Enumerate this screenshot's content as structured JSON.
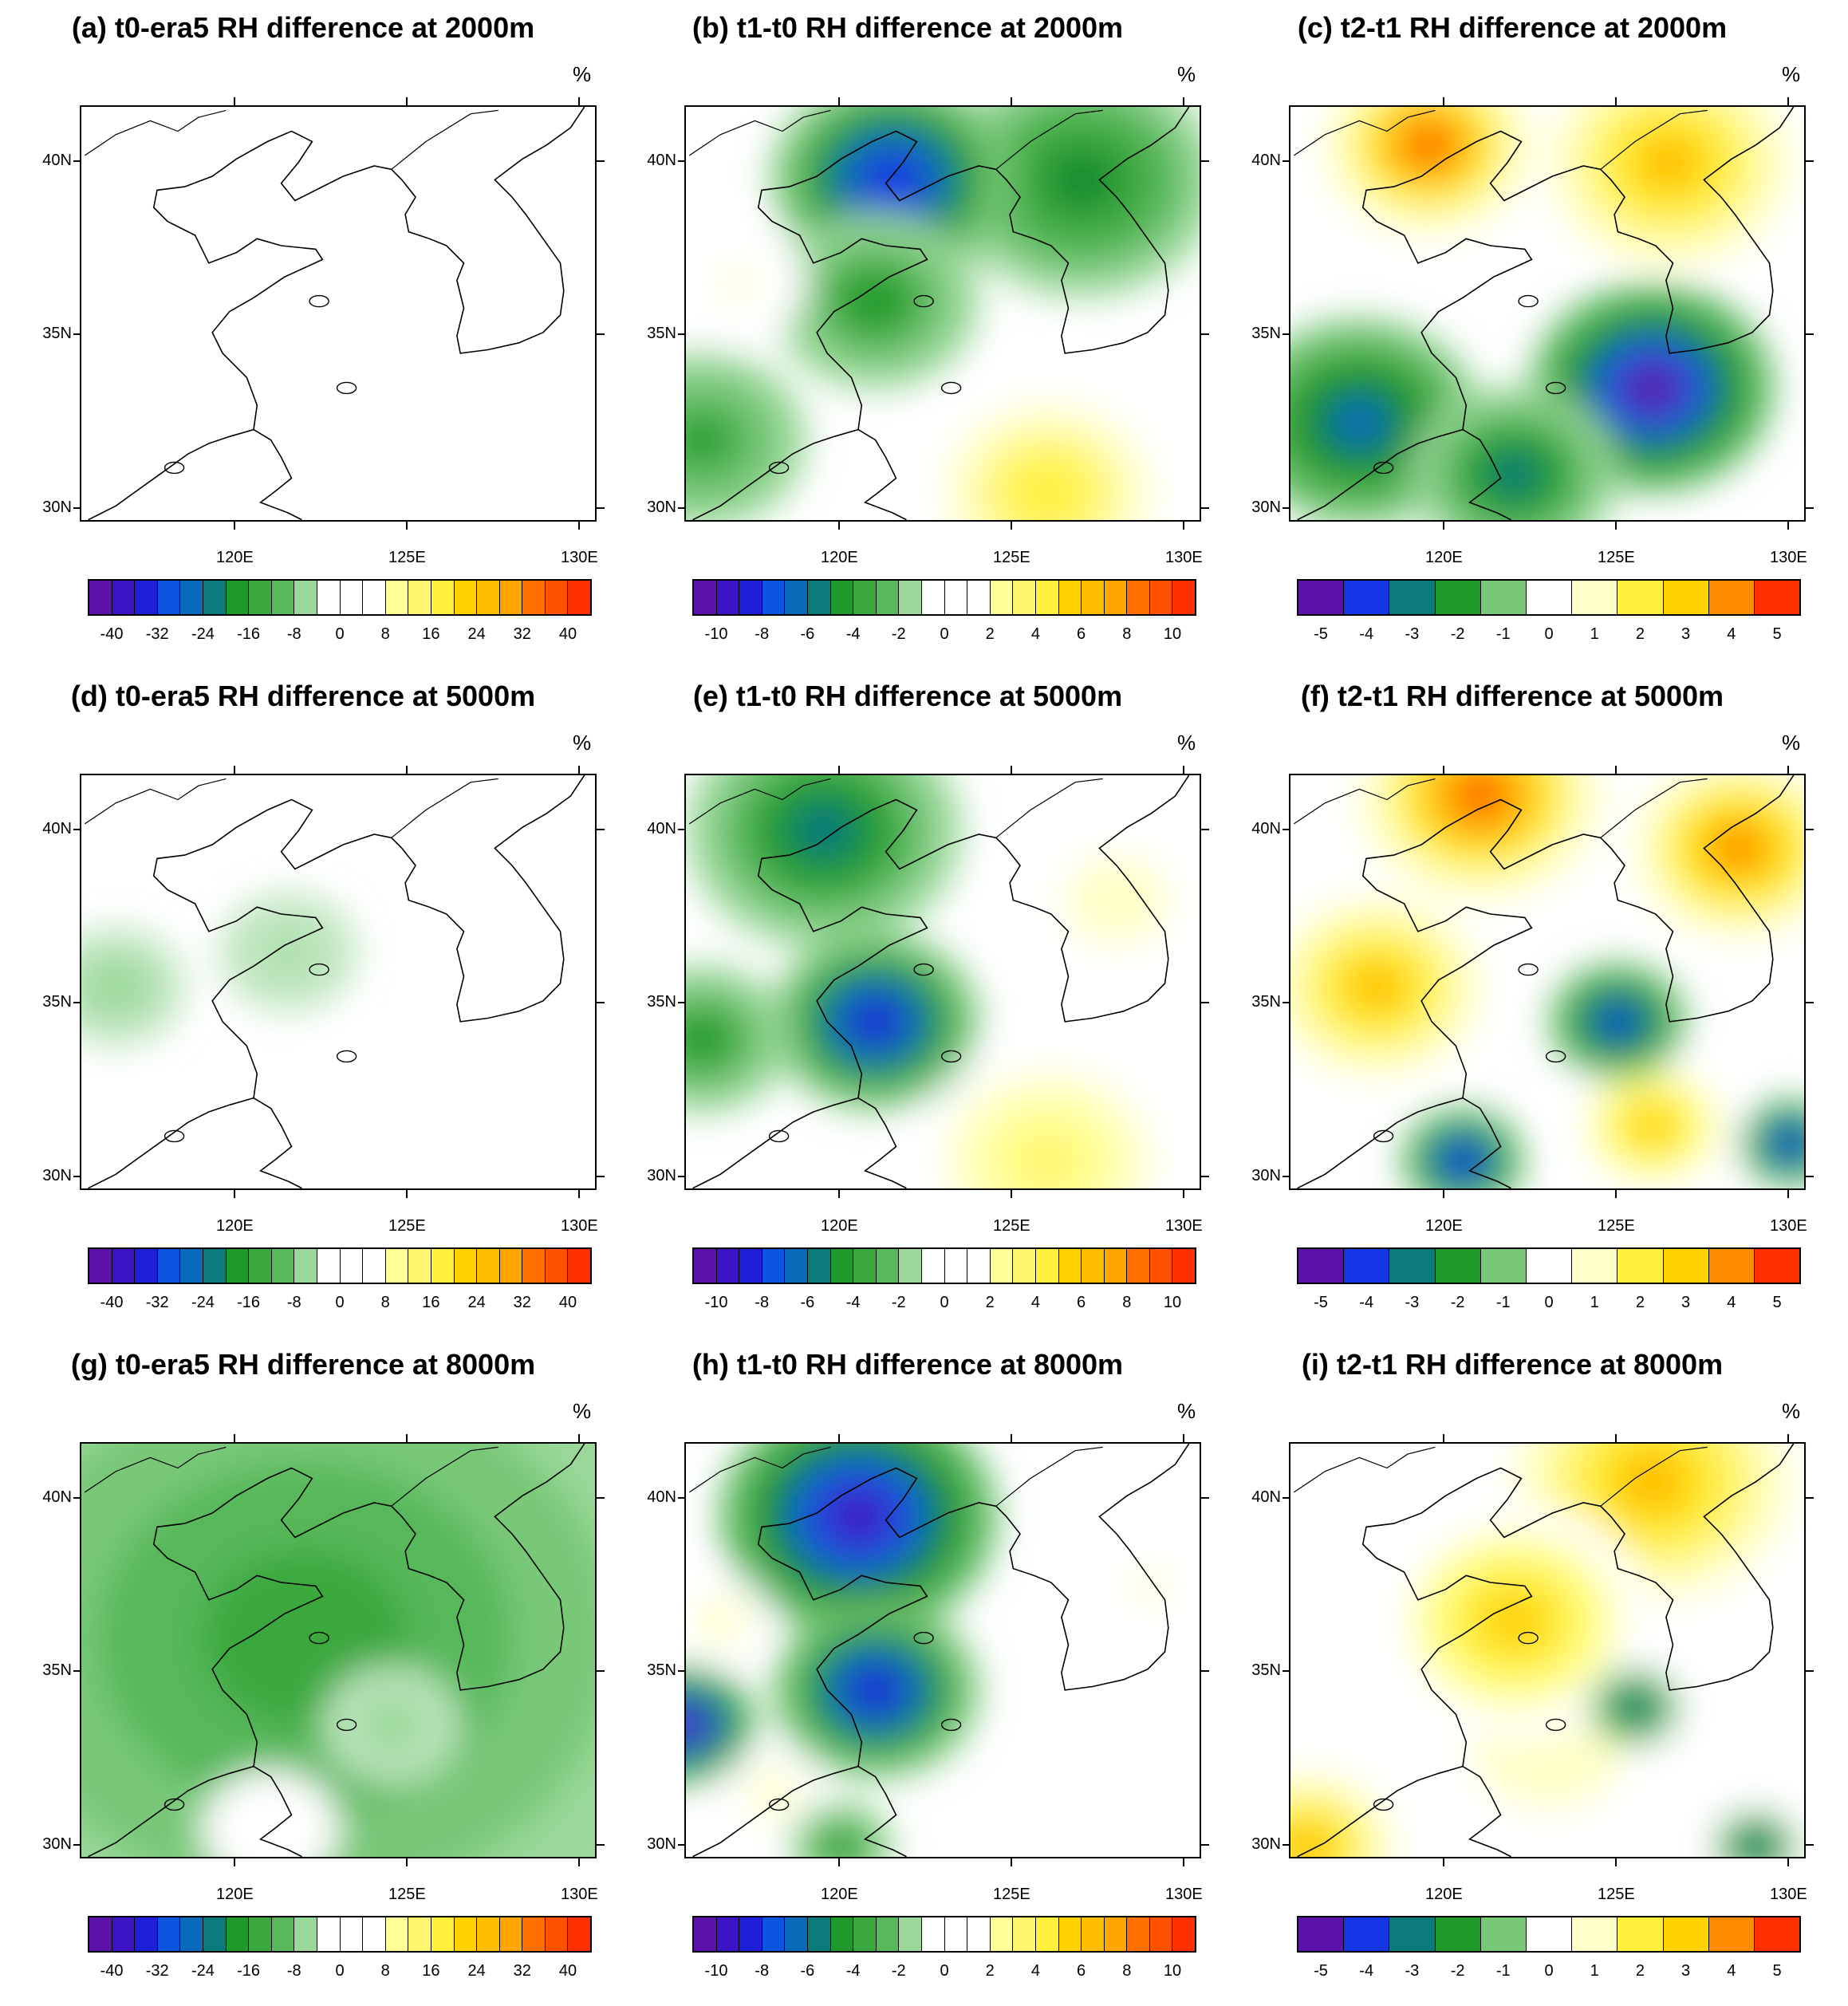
{
  "figure": {
    "unit": "%",
    "x_ticks": [
      "120E",
      "125E",
      "130E"
    ],
    "y_ticks": [
      "40N",
      "35N",
      "30N"
    ]
  },
  "colors": {
    "diverging_scale": [
      "#4b0a83",
      "#5a12a8",
      "#3c14c6",
      "#1f1ed8",
      "#1436e6",
      "#0c55e0",
      "#0a6aba",
      "#0a7a7a",
      "#0f8a2e",
      "#1f9a2a",
      "#3aa83e",
      "#56b85a",
      "#78c878",
      "#9ad89a",
      "#bfe6bf",
      "#ffffff",
      "#ffffff",
      "#ffffc8",
      "#ffff96",
      "#fff56e",
      "#fff03c",
      "#ffe61e",
      "#ffd200",
      "#ffbe00",
      "#ffa500",
      "#ff8c00",
      "#ff7000",
      "#ff5200",
      "#ff3000",
      "#ff0000"
    ]
  },
  "chart_data": [
    {
      "id": "a",
      "type": "heatmap",
      "title": "(a) t0-era5 RH difference at 2000m",
      "unit": "%",
      "colorbar_labels": [
        "-40",
        "-32",
        "-24",
        "-16",
        "-8",
        "0",
        "8",
        "16",
        "24",
        "32",
        "40"
      ],
      "colorbar_boxes": 22,
      "value_range": [
        -40,
        40
      ],
      "anomalies": [
        {
          "lon": 124.5,
          "lat": 33.5,
          "value": 4,
          "radius_deg": 3
        },
        {
          "lon": 119.0,
          "lat": 38.5,
          "value": 3,
          "radius_deg": 1.5
        },
        {
          "lon": 126.5,
          "lat": 31.0,
          "value": 3,
          "radius_deg": 2
        },
        {
          "lon": 118.0,
          "lat": 33.0,
          "value": 2,
          "radius_deg": 2
        }
      ]
    },
    {
      "id": "b",
      "type": "heatmap",
      "title": "(b) t1-t0 RH difference at 2000m",
      "unit": "%",
      "colorbar_labels": [
        "-10",
        "-8",
        "-6",
        "-4",
        "-2",
        "0",
        "2",
        "4",
        "6",
        "8",
        "10"
      ],
      "colorbar_boxes": 22,
      "value_range": [
        -10,
        10
      ],
      "anomalies": [
        {
          "lon": 121.5,
          "lat": 39.5,
          "value": -7.5,
          "radius_deg": 3.5
        },
        {
          "lon": 127.0,
          "lat": 39.5,
          "value": -4.5,
          "radius_deg": 4
        },
        {
          "lon": 121.0,
          "lat": 36.0,
          "value": -4,
          "radius_deg": 3
        },
        {
          "lon": 116.0,
          "lat": 32.0,
          "value": -3.5,
          "radius_deg": 3
        },
        {
          "lon": 126.0,
          "lat": 30.5,
          "value": 4,
          "radius_deg": 4
        },
        {
          "lon": 117.0,
          "lat": 36.5,
          "value": 1.5,
          "radius_deg": 2
        }
      ]
    },
    {
      "id": "c",
      "type": "heatmap",
      "title": "(c) t2-t1 RH difference at 2000m",
      "unit": "%",
      "colorbar_labels": [
        "-5",
        "-4",
        "-3",
        "-2",
        "-1",
        "0",
        "1",
        "2",
        "3",
        "4",
        "5"
      ],
      "colorbar_boxes": 11,
      "value_range": [
        -5,
        5
      ],
      "anomalies": [
        {
          "lon": 119.5,
          "lat": 40.5,
          "value": 4,
          "radius_deg": 3
        },
        {
          "lon": 126.5,
          "lat": 40.0,
          "value": 3,
          "radius_deg": 3.5
        },
        {
          "lon": 126.0,
          "lat": 33.5,
          "value": -4.5,
          "radius_deg": 3.5
        },
        {
          "lon": 117.5,
          "lat": 32.5,
          "value": -3,
          "radius_deg": 3.5
        },
        {
          "lon": 122.0,
          "lat": 31.0,
          "value": -2.5,
          "radius_deg": 3
        }
      ]
    },
    {
      "id": "d",
      "type": "heatmap",
      "title": "(d) t0-era5 RH difference at 5000m",
      "unit": "%",
      "colorbar_labels": [
        "-40",
        "-32",
        "-24",
        "-16",
        "-8",
        "0",
        "8",
        "16",
        "24",
        "32",
        "40"
      ],
      "colorbar_boxes": 22,
      "value_range": [
        -40,
        40
      ],
      "anomalies": [
        {
          "lon": 116.5,
          "lat": 35.5,
          "value": -5,
          "radius_deg": 2
        },
        {
          "lon": 121.5,
          "lat": 36.5,
          "value": -3,
          "radius_deg": 2
        },
        {
          "lon": 124.5,
          "lat": 31.5,
          "value": 4,
          "radius_deg": 2.5
        },
        {
          "lon": 117.0,
          "lat": 31.0,
          "value": 3,
          "radius_deg": 1.5
        }
      ]
    },
    {
      "id": "e",
      "type": "heatmap",
      "title": "(e) t1-t0 RH difference at 5000m",
      "unit": "%",
      "colorbar_labels": [
        "-10",
        "-8",
        "-6",
        "-4",
        "-2",
        "0",
        "2",
        "4",
        "6",
        "8",
        "10"
      ],
      "colorbar_boxes": 22,
      "value_range": [
        -10,
        10
      ],
      "anomalies": [
        {
          "lon": 121.0,
          "lat": 34.5,
          "value": -8,
          "radius_deg": 3
        },
        {
          "lon": 119.5,
          "lat": 40.0,
          "value": -5,
          "radius_deg": 4
        },
        {
          "lon": 116.0,
          "lat": 34.0,
          "value": -4,
          "radius_deg": 2.5
        },
        {
          "lon": 126.0,
          "lat": 30.5,
          "value": 3,
          "radius_deg": 4
        },
        {
          "lon": 128.0,
          "lat": 38.0,
          "value": 2,
          "radius_deg": 3
        }
      ]
    },
    {
      "id": "f",
      "type": "heatmap",
      "title": "(f) t2-t1 RH difference at 5000m",
      "unit": "%",
      "colorbar_labels": [
        "-5",
        "-4",
        "-3",
        "-2",
        "-1",
        "0",
        "1",
        "2",
        "3",
        "4",
        "5"
      ],
      "colorbar_boxes": 11,
      "value_range": [
        -5,
        5
      ],
      "anomalies": [
        {
          "lon": 121.0,
          "lat": 41.0,
          "value": 4,
          "radius_deg": 3.5
        },
        {
          "lon": 128.5,
          "lat": 39.5,
          "value": 3.5,
          "radius_deg": 3
        },
        {
          "lon": 118.0,
          "lat": 35.5,
          "value": 3,
          "radius_deg": 3
        },
        {
          "lon": 125.0,
          "lat": 34.5,
          "value": -3.5,
          "radius_deg": 2
        },
        {
          "lon": 120.5,
          "lat": 30.5,
          "value": -4,
          "radius_deg": 1.8
        },
        {
          "lon": 130.0,
          "lat": 31.0,
          "value": -4,
          "radius_deg": 1.5
        },
        {
          "lon": 126.0,
          "lat": 31.5,
          "value": 2.5,
          "radius_deg": 2.5
        }
      ]
    },
    {
      "id": "g",
      "type": "heatmap",
      "title": "(g) t0-era5 RH difference at 8000m",
      "unit": "%",
      "colorbar_labels": [
        "-40",
        "-32",
        "-24",
        "-16",
        "-8",
        "0",
        "8",
        "16",
        "24",
        "32",
        "40"
      ],
      "colorbar_boxes": 22,
      "value_range": [
        -40,
        40
      ],
      "anomalies": [
        {
          "lon": 122.0,
          "lat": 36.0,
          "value": -13,
          "radius_deg": 12
        },
        {
          "lon": 124.5,
          "lat": 33.5,
          "value": -4,
          "radius_deg": 2
        },
        {
          "lon": 121.0,
          "lat": 30.5,
          "value": 5,
          "radius_deg": 2
        }
      ]
    },
    {
      "id": "h",
      "type": "heatmap",
      "title": "(h) t1-t0 RH difference at 8000m",
      "unit": "%",
      "colorbar_labels": [
        "-10",
        "-8",
        "-6",
        "-4",
        "-2",
        "0",
        "2",
        "4",
        "6",
        "8",
        "10"
      ],
      "colorbar_boxes": 22,
      "value_range": [
        -10,
        10
      ],
      "anomalies": [
        {
          "lon": 120.5,
          "lat": 39.5,
          "value": -8.5,
          "radius_deg": 4
        },
        {
          "lon": 121.0,
          "lat": 34.5,
          "value": -8,
          "radius_deg": 3
        },
        {
          "lon": 115.5,
          "lat": 33.5,
          "value": -9,
          "radius_deg": 2
        },
        {
          "lon": 116.5,
          "lat": 36.5,
          "value": 2,
          "radius_deg": 1.5
        },
        {
          "lon": 118.0,
          "lat": 31.5,
          "value": 2,
          "radius_deg": 1.5
        },
        {
          "lon": 129.0,
          "lat": 37.5,
          "value": 1.5,
          "radius_deg": 2
        },
        {
          "lon": 120.0,
          "lat": 30.0,
          "value": -4,
          "radius_deg": 1.5
        }
      ]
    },
    {
      "id": "i",
      "type": "heatmap",
      "title": "(i) t2-t1 RH difference at 8000m",
      "unit": "%",
      "colorbar_labels": [
        "-5",
        "-4",
        "-3",
        "-2",
        "-1",
        "0",
        "1",
        "2",
        "3",
        "4",
        "5"
      ],
      "colorbar_boxes": 11,
      "value_range": [
        -5,
        5
      ],
      "anomalies": [
        {
          "lon": 126.0,
          "lat": 40.5,
          "value": 3,
          "radius_deg": 4
        },
        {
          "lon": 122.0,
          "lat": 36.5,
          "value": 2.5,
          "radius_deg": 4
        },
        {
          "lon": 116.0,
          "lat": 30.0,
          "value": 3,
          "radius_deg": 2.5
        },
        {
          "lon": 125.5,
          "lat": 34.0,
          "value": -3,
          "radius_deg": 1.3
        },
        {
          "lon": 123.0,
          "lat": 33.0,
          "value": 0.8,
          "radius_deg": 9
        },
        {
          "lon": 129.0,
          "lat": 30.0,
          "value": -3,
          "radius_deg": 1.2
        }
      ]
    }
  ]
}
